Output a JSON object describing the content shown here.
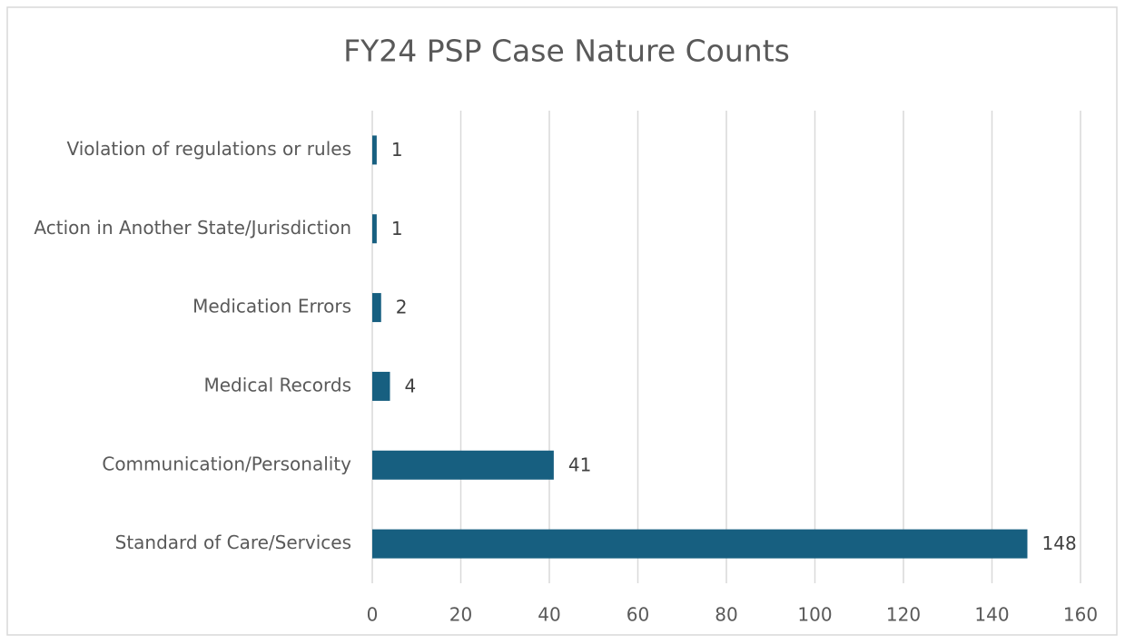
{
  "chart_data": {
    "type": "bar",
    "title": "FY24 PSP Case Nature Counts",
    "categories": [
      "Violation of regulations or rules",
      "Action in Another State/Jurisdiction",
      "Medication Errors",
      "Medical Records",
      "Communication/Personality",
      "Standard of Care/Services"
    ],
    "values": [
      1,
      1,
      2,
      4,
      41,
      148
    ],
    "color": "#175f80",
    "xlim": [
      0,
      160
    ],
    "xticks": [
      0,
      20,
      40,
      60,
      80,
      100,
      120,
      140,
      160
    ],
    "grid": true
  }
}
